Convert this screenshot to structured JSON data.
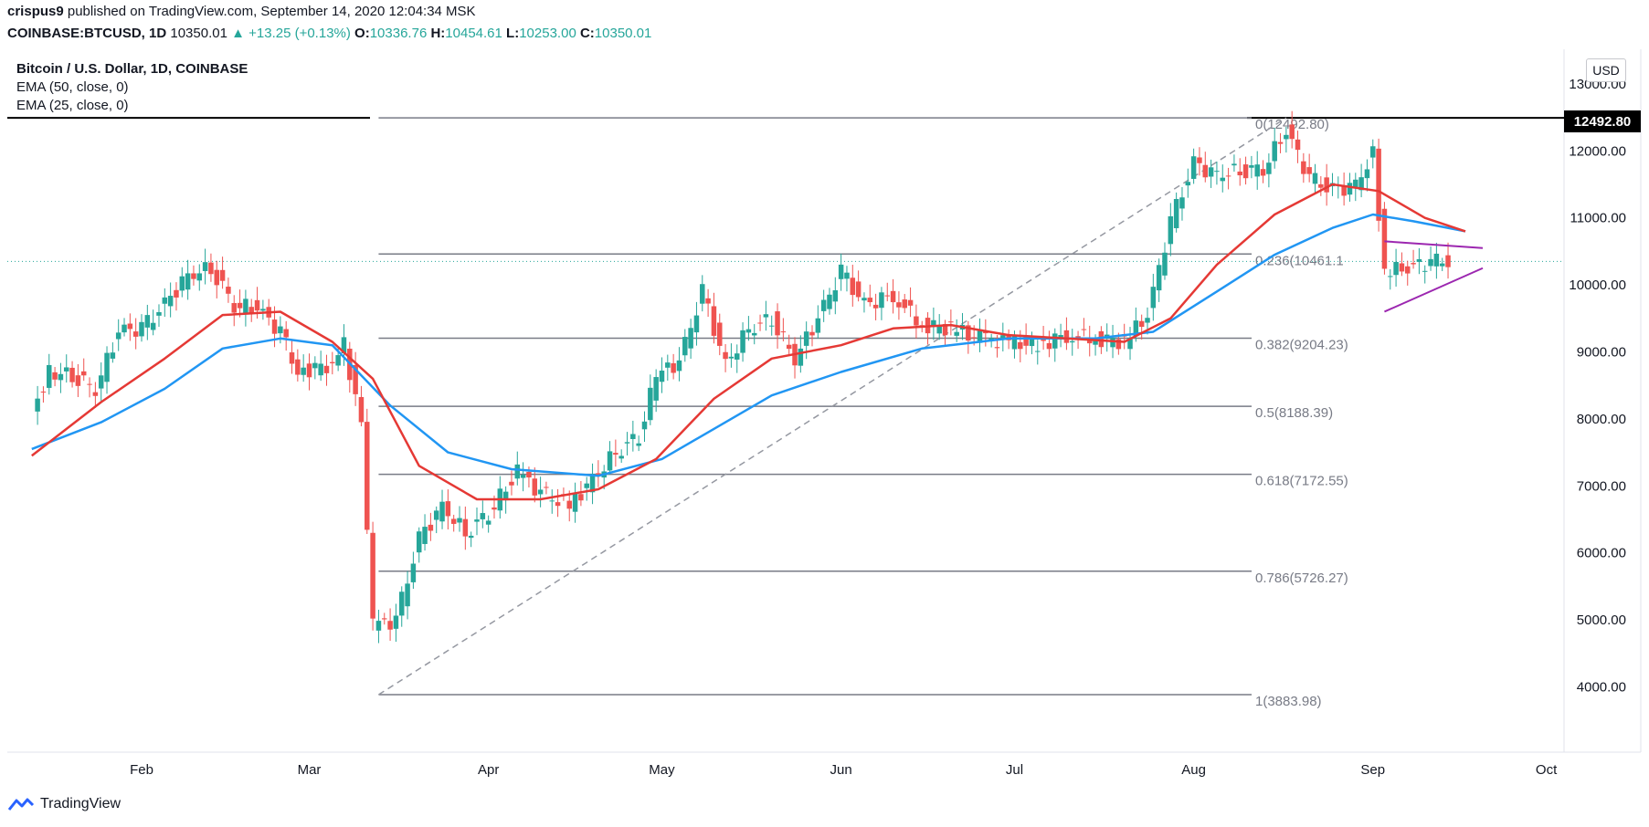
{
  "header": {
    "publisher_user": "crispus9",
    "published_text": "published on TradingView.com, September 14, 2020 12:04:34 MSK",
    "symbol": "COINBASE:BTCUSD, 1D",
    "last": "10350.01",
    "change": "▲ +13.25 (+0.13%)",
    "o_label": "O:",
    "o": "10336.76",
    "h_label": "H:",
    "h": "10454.61",
    "l_label": "L:",
    "l": "10253.00",
    "c_label": "C:",
    "c": "10350.01"
  },
  "legend": {
    "title": "Bitcoin / U.S. Dollar, 1D, COINBASE",
    "ema50": "EMA (50, close, 0)",
    "ema25": "EMA (25, close, 0)"
  },
  "currency_button": "USD",
  "price_tag": "12492.80",
  "footer": {
    "brand": "TradingView"
  },
  "colors": {
    "up": "#26a69a",
    "down": "#ef5350",
    "ema25": "#e53935",
    "ema50": "#2196f3",
    "fib": "#787b86",
    "triangle": "#9c27b0"
  },
  "chart_data": {
    "type": "candlestick",
    "y_axis": {
      "ticks": [
        "13000.00",
        "12000.00",
        "11000.00",
        "10000.00",
        "9000.00",
        "8000.00",
        "7000.00",
        "6000.00",
        "5000.00",
        "4000.00"
      ],
      "range": [
        3100,
        13400
      ]
    },
    "x_axis": {
      "ticks": [
        "Feb",
        "Mar",
        "Apr",
        "May",
        "Jun",
        "Jul",
        "Aug",
        "Sep",
        "Oct"
      ]
    },
    "fibonacci": [
      {
        "label": "0(12492.80)",
        "price": 12492.8
      },
      {
        "label": "0.236(10461.1",
        "price": 10461.1
      },
      {
        "label": "0.382(9204.23)",
        "price": 9204.23
      },
      {
        "label": "0.5(8188.39)",
        "price": 8188.39
      },
      {
        "label": "0.618(7172.55)",
        "price": 7172.55
      },
      {
        "label": "0.786(5726.27)",
        "price": 5726.27
      },
      {
        "label": "1(3883.98)",
        "price": 3883.98
      }
    ],
    "close_series": [
      {
        "d": "2020-01-13",
        "v": 8100
      },
      {
        "d": "2020-01-16",
        "v": 8700
      },
      {
        "d": "2020-01-20",
        "v": 8650
      },
      {
        "d": "2020-01-24",
        "v": 8450
      },
      {
        "d": "2020-01-28",
        "v": 9300
      },
      {
        "d": "2020-02-01",
        "v": 9350
      },
      {
        "d": "2020-02-05",
        "v": 9700
      },
      {
        "d": "2020-02-09",
        "v": 10150
      },
      {
        "d": "2020-02-13",
        "v": 10250
      },
      {
        "d": "2020-02-17",
        "v": 9700
      },
      {
        "d": "2020-02-21",
        "v": 9650
      },
      {
        "d": "2020-02-25",
        "v": 9300
      },
      {
        "d": "2020-02-28",
        "v": 8700
      },
      {
        "d": "2020-03-04",
        "v": 8800
      },
      {
        "d": "2020-03-07",
        "v": 9100
      },
      {
        "d": "2020-03-10",
        "v": 7900
      },
      {
        "d": "2020-03-12",
        "v": 4900
      },
      {
        "d": "2020-03-16",
        "v": 5000
      },
      {
        "d": "2020-03-20",
        "v": 6200
      },
      {
        "d": "2020-03-24",
        "v": 6700
      },
      {
        "d": "2020-03-28",
        "v": 6300
      },
      {
        "d": "2020-04-01",
        "v": 6600
      },
      {
        "d": "2020-04-06",
        "v": 7200
      },
      {
        "d": "2020-04-10",
        "v": 6900
      },
      {
        "d": "2020-04-15",
        "v": 6700
      },
      {
        "d": "2020-04-19",
        "v": 7100
      },
      {
        "d": "2020-04-23",
        "v": 7500
      },
      {
        "d": "2020-04-27",
        "v": 7750
      },
      {
        "d": "2020-04-30",
        "v": 8650
      },
      {
        "d": "2020-05-04",
        "v": 8850
      },
      {
        "d": "2020-05-08",
        "v": 9900
      },
      {
        "d": "2020-05-12",
        "v": 8800
      },
      {
        "d": "2020-05-16",
        "v": 9350
      },
      {
        "d": "2020-05-20",
        "v": 9500
      },
      {
        "d": "2020-05-24",
        "v": 8900
      },
      {
        "d": "2020-05-28",
        "v": 9500
      },
      {
        "d": "2020-06-01",
        "v": 10200
      },
      {
        "d": "2020-06-05",
        "v": 9700
      },
      {
        "d": "2020-06-10",
        "v": 9850
      },
      {
        "d": "2020-06-15",
        "v": 9400
      },
      {
        "d": "2020-06-20",
        "v": 9350
      },
      {
        "d": "2020-06-25",
        "v": 9200
      },
      {
        "d": "2020-06-30",
        "v": 9150
      },
      {
        "d": "2020-07-05",
        "v": 9100
      },
      {
        "d": "2020-07-10",
        "v": 9250
      },
      {
        "d": "2020-07-15",
        "v": 9200
      },
      {
        "d": "2020-07-20",
        "v": 9150
      },
      {
        "d": "2020-07-24",
        "v": 9550
      },
      {
        "d": "2020-07-28",
        "v": 10950
      },
      {
        "d": "2020-08-01",
        "v": 11800
      },
      {
        "d": "2020-08-05",
        "v": 11650
      },
      {
        "d": "2020-08-09",
        "v": 11700
      },
      {
        "d": "2020-08-13",
        "v": 11750
      },
      {
        "d": "2020-08-17",
        "v": 12300
      },
      {
        "d": "2020-08-21",
        "v": 11600
      },
      {
        "d": "2020-08-25",
        "v": 11400
      },
      {
        "d": "2020-08-29",
        "v": 11500
      },
      {
        "d": "2020-09-01",
        "v": 11950
      },
      {
        "d": "2020-09-03",
        "v": 10200
      },
      {
        "d": "2020-09-07",
        "v": 10250
      },
      {
        "d": "2020-09-11",
        "v": 10350
      },
      {
        "d": "2020-09-14",
        "v": 10350
      }
    ],
    "ema25": [
      {
        "d": "2020-01-13",
        "v": 7450
      },
      {
        "d": "2020-01-25",
        "v": 8250
      },
      {
        "d": "2020-02-05",
        "v": 8900
      },
      {
        "d": "2020-02-15",
        "v": 9550
      },
      {
        "d": "2020-02-25",
        "v": 9600
      },
      {
        "d": "2020-03-05",
        "v": 9150
      },
      {
        "d": "2020-03-12",
        "v": 8600
      },
      {
        "d": "2020-03-20",
        "v": 7300
      },
      {
        "d": "2020-03-30",
        "v": 6800
      },
      {
        "d": "2020-04-10",
        "v": 6800
      },
      {
        "d": "2020-04-20",
        "v": 6950
      },
      {
        "d": "2020-04-30",
        "v": 7400
      },
      {
        "d": "2020-05-10",
        "v": 8300
      },
      {
        "d": "2020-05-20",
        "v": 8900
      },
      {
        "d": "2020-06-01",
        "v": 9100
      },
      {
        "d": "2020-06-10",
        "v": 9350
      },
      {
        "d": "2020-06-20",
        "v": 9400
      },
      {
        "d": "2020-06-30",
        "v": 9250
      },
      {
        "d": "2020-07-10",
        "v": 9200
      },
      {
        "d": "2020-07-20",
        "v": 9150
      },
      {
        "d": "2020-07-28",
        "v": 9500
      },
      {
        "d": "2020-08-05",
        "v": 10300
      },
      {
        "d": "2020-08-15",
        "v": 11050
      },
      {
        "d": "2020-08-25",
        "v": 11500
      },
      {
        "d": "2020-09-02",
        "v": 11400
      },
      {
        "d": "2020-09-10",
        "v": 11000
      },
      {
        "d": "2020-09-17",
        "v": 10800
      }
    ],
    "ema50": [
      {
        "d": "2020-01-13",
        "v": 7550
      },
      {
        "d": "2020-01-25",
        "v": 7950
      },
      {
        "d": "2020-02-05",
        "v": 8450
      },
      {
        "d": "2020-02-15",
        "v": 9050
      },
      {
        "d": "2020-02-25",
        "v": 9200
      },
      {
        "d": "2020-03-05",
        "v": 9100
      },
      {
        "d": "2020-03-15",
        "v": 8200
      },
      {
        "d": "2020-03-25",
        "v": 7500
      },
      {
        "d": "2020-04-05",
        "v": 7250
      },
      {
        "d": "2020-04-20",
        "v": 7150
      },
      {
        "d": "2020-05-01",
        "v": 7400
      },
      {
        "d": "2020-05-10",
        "v": 7850
      },
      {
        "d": "2020-05-20",
        "v": 8350
      },
      {
        "d": "2020-06-01",
        "v": 8700
      },
      {
        "d": "2020-06-15",
        "v": 9050
      },
      {
        "d": "2020-06-30",
        "v": 9200
      },
      {
        "d": "2020-07-15",
        "v": 9200
      },
      {
        "d": "2020-07-25",
        "v": 9300
      },
      {
        "d": "2020-08-05",
        "v": 9900
      },
      {
        "d": "2020-08-15",
        "v": 10450
      },
      {
        "d": "2020-08-25",
        "v": 10850
      },
      {
        "d": "2020-09-01",
        "v": 11050
      },
      {
        "d": "2020-09-08",
        "v": 10950
      },
      {
        "d": "2020-09-17",
        "v": 10800
      }
    ]
  }
}
